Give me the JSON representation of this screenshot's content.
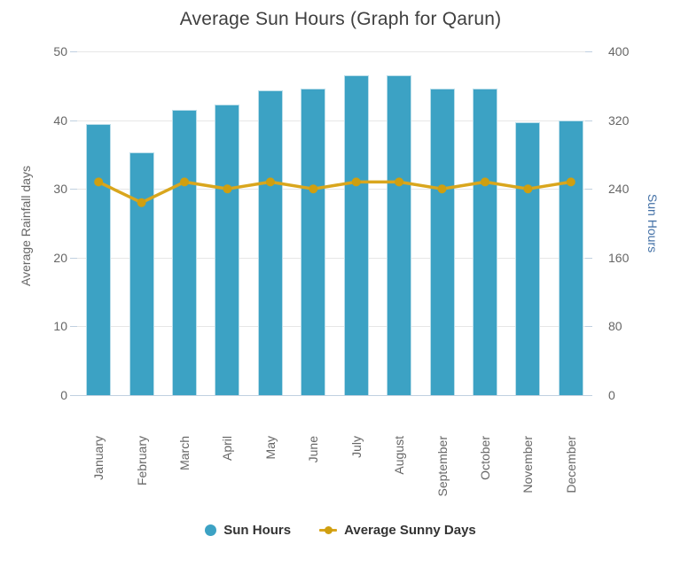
{
  "title": "Average Sun Hours (Graph for Qarun)",
  "chart_data": {
    "type": "bar",
    "title": "Average Sun Hours (Graph for Qarun)",
    "categories": [
      "January",
      "February",
      "March",
      "April",
      "May",
      "June",
      "July",
      "August",
      "September",
      "October",
      "November",
      "December"
    ],
    "series": [
      {
        "name": "Sun Hours",
        "type": "bar",
        "axis": "right",
        "color": "#3ca2c4",
        "values": [
          315,
          283,
          332,
          338,
          355,
          357,
          372,
          372,
          357,
          357,
          318,
          320
        ]
      },
      {
        "name": "Average Sunny Days",
        "type": "line",
        "axis": "left",
        "color": "#d9a61d",
        "marker_color": "#cf9f10",
        "values": [
          31,
          28,
          31,
          30,
          31,
          30,
          31,
          31,
          30,
          31,
          30,
          31
        ]
      }
    ],
    "y_left": {
      "label": "Average Rainfall days",
      "min": 0,
      "max": 50,
      "ticks": [
        0,
        10,
        20,
        30,
        40,
        50
      ],
      "text_color": "#666666"
    },
    "y_right": {
      "label": "Sun Hours",
      "min": 0,
      "max": 400,
      "ticks": [
        0,
        80,
        160,
        240,
        320,
        400
      ],
      "text_color": "#4572a7"
    },
    "grid": true,
    "gridline_color": "#e6e6e6",
    "axis_line_color": "#c0d0e0",
    "legend_position": "bottom"
  },
  "legend": {
    "items": [
      {
        "label": "Sun Hours",
        "marker": "circle",
        "color": "#3ca2c4"
      },
      {
        "label": "Average Sunny Days",
        "marker": "line-dot",
        "color": "#d9a61d",
        "dot_color": "#cf9f10"
      }
    ]
  }
}
